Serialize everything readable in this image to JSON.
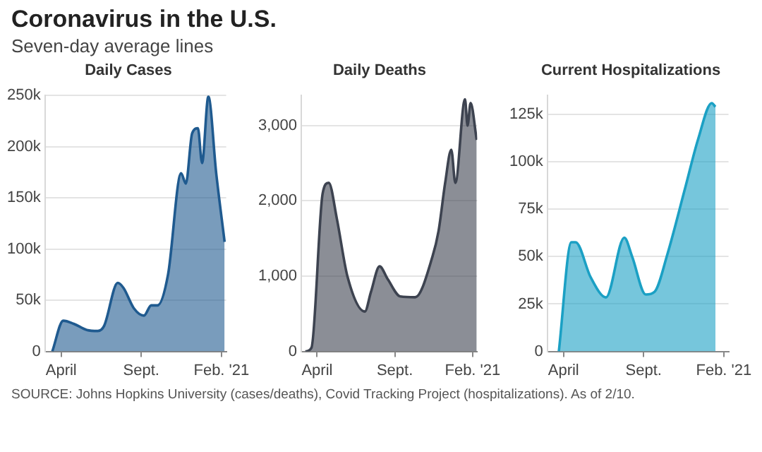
{
  "chart_data": [
    {
      "type": "other",
      "title": "Coronavirus in the U.S.",
      "subtitle": "Seven-day average lines",
      "annotations": [
        "SOURCE: Johns Hopkins University (cases/deaths), Covid Tracking Project (hospitalizations). As of 2/10."
      ]
    },
    {
      "type": "area",
      "title": "Daily Cases",
      "grid": "y",
      "marker": "none",
      "legend": false,
      "xlim": [
        "2020-03-01",
        "2021-02-10"
      ],
      "xticks": [
        {
          "value": "2020-04-01",
          "label": "April"
        },
        {
          "value": "2020-09-01",
          "label": "Sept."
        },
        {
          "value": "2021-02-01",
          "label": "Feb. '21"
        }
      ],
      "ylim": [
        0,
        250000
      ],
      "yticks": [
        {
          "value": 0,
          "label": "0"
        },
        {
          "value": 50000,
          "label": "50k"
        },
        {
          "value": 100000,
          "label": "100k"
        },
        {
          "value": 150000,
          "label": "150k"
        },
        {
          "value": 200000,
          "label": "200k"
        },
        {
          "value": 250000,
          "label": "250k"
        }
      ],
      "x": [
        "2020-03-15",
        "2020-04-05",
        "2020-04-25",
        "2020-05-20",
        "2020-06-10",
        "2020-06-22",
        "2020-07-18",
        "2020-07-29",
        "2020-08-18",
        "2020-09-06",
        "2020-09-20",
        "2020-10-02",
        "2020-10-22",
        "2020-11-16",
        "2020-11-25",
        "2020-12-07",
        "2020-12-18",
        "2020-12-26",
        "2021-01-07",
        "2021-01-22",
        "2021-02-07"
      ],
      "series": [
        {
          "color": "#1f5a8f",
          "values": [
            0,
            30000,
            27000,
            21000,
            20000,
            25000,
            67000,
            62000,
            42000,
            35000,
            45000,
            45000,
            75000,
            174000,
            164000,
            213000,
            218000,
            184000,
            249000,
            174000,
            107000
          ]
        }
      ]
    },
    {
      "type": "area",
      "title": "Daily Deaths",
      "grid": "y",
      "marker": "none",
      "legend": false,
      "xlim": [
        "2020-03-01",
        "2021-02-10"
      ],
      "xticks": [
        {
          "value": "2020-04-01",
          "label": "April"
        },
        {
          "value": "2020-09-01",
          "label": "Sept."
        },
        {
          "value": "2021-02-01",
          "label": "Feb. '21"
        }
      ],
      "ylim": [
        0,
        3400
      ],
      "yticks": [
        {
          "value": 0,
          "label": "0"
        },
        {
          "value": 1000,
          "label": "1,000"
        },
        {
          "value": 2000,
          "label": "2,000"
        },
        {
          "value": 3000,
          "label": "3,000"
        }
      ],
      "x": [
        "2020-03-09",
        "2020-03-21",
        "2020-04-12",
        "2020-04-24",
        "2020-05-10",
        "2020-05-31",
        "2020-07-04",
        "2020-07-16",
        "2020-08-02",
        "2020-08-18",
        "2020-09-12",
        "2020-10-11",
        "2020-11-14",
        "2020-11-26",
        "2020-12-09",
        "2020-12-21",
        "2020-12-29",
        "2021-01-17",
        "2021-01-22",
        "2021-01-28",
        "2021-02-09"
      ],
      "series": [
        {
          "color": "#3d4350",
          "values": [
            0,
            50,
            2100,
            2240,
            1760,
            990,
            530,
            790,
            1130,
            960,
            730,
            720,
            1260,
            1600,
            2240,
            2680,
            2240,
            3350,
            3000,
            3300,
            2810
          ]
        }
      ]
    },
    {
      "type": "area",
      "title": "Current Hospitalizations",
      "grid": "y",
      "marker": "none",
      "legend": false,
      "xlim": [
        "2020-03-01",
        "2021-02-10"
      ],
      "xticks": [
        {
          "value": "2020-04-01",
          "label": "April"
        },
        {
          "value": "2020-09-01",
          "label": "Sept."
        },
        {
          "value": "2021-02-01",
          "label": "Feb. '21"
        }
      ],
      "ylim": [
        0,
        135000
      ],
      "yticks": [
        {
          "value": 0,
          "label": "0"
        },
        {
          "value": 25000,
          "label": "25k"
        },
        {
          "value": 50000,
          "label": "50k"
        },
        {
          "value": 75000,
          "label": "75k"
        },
        {
          "value": 100000,
          "label": "100k"
        },
        {
          "value": 125000,
          "label": "125k"
        }
      ],
      "x": [
        "2020-03-23",
        "2020-04-16",
        "2020-04-24",
        "2020-05-23",
        "2020-06-21",
        "2020-07-26",
        "2020-08-10",
        "2020-09-05",
        "2020-09-22",
        "2020-10-16",
        "2020-11-19",
        "2020-12-14",
        "2021-01-09",
        "2021-01-16"
      ],
      "series": [
        {
          "color": "#1ba0c4",
          "values": [
            0,
            57600,
            57600,
            39000,
            28500,
            60000,
            50000,
            30000,
            31500,
            51000,
            86000,
            112000,
            131000,
            129000
          ]
        }
      ]
    }
  ]
}
